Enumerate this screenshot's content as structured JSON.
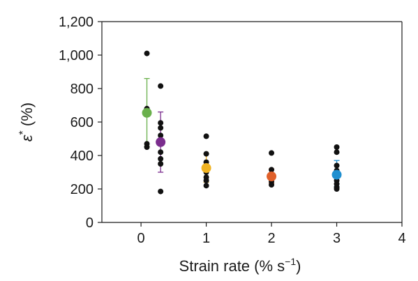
{
  "chart_data": {
    "type": "scatter",
    "xlabel": "Strain rate (% s",
    "xlabel_exponent": "−1",
    "xlabel_suffix": ")",
    "ylabel_symbol": "ε",
    "ylabel_star": "*",
    "ylabel_unit": " (%)",
    "xlim": [
      -0.6,
      4
    ],
    "ylim": [
      0,
      1200
    ],
    "x_ticks": [
      {
        "value": 0,
        "label": "0"
      },
      {
        "value": 1,
        "label": "1"
      },
      {
        "value": 2,
        "label": "2"
      },
      {
        "value": 3,
        "label": "3"
      },
      {
        "value": 4,
        "label": "4"
      }
    ],
    "y_ticks": [
      {
        "value": 0,
        "label": "0"
      },
      {
        "value": 200,
        "label": "200"
      },
      {
        "value": 400,
        "label": "400"
      },
      {
        "value": 600,
        "label": "600"
      },
      {
        "value": 800,
        "label": "800"
      },
      {
        "value": 1000,
        "label": "1,000"
      },
      {
        "value": 1200,
        "label": "1,200"
      }
    ],
    "grid": false,
    "individual_points": {
      "color": "#111111",
      "points": [
        [
          0.09,
          1010
        ],
        [
          0.09,
          680
        ],
        [
          0.09,
          470
        ],
        [
          0.09,
          450
        ],
        [
          0.3,
          815
        ],
        [
          0.3,
          595
        ],
        [
          0.3,
          565
        ],
        [
          0.3,
          520
        ],
        [
          0.3,
          420
        ],
        [
          0.3,
          380
        ],
        [
          0.3,
          350
        ],
        [
          0.3,
          185
        ],
        [
          1.0,
          515
        ],
        [
          1.0,
          410
        ],
        [
          1.0,
          360
        ],
        [
          1.0,
          330
        ],
        [
          1.0,
          300
        ],
        [
          1.0,
          270
        ],
        [
          1.0,
          250
        ],
        [
          1.0,
          220
        ],
        [
          2.0,
          415
        ],
        [
          2.0,
          315
        ],
        [
          2.0,
          290
        ],
        [
          2.0,
          265
        ],
        [
          2.0,
          245
        ],
        [
          2.0,
          225
        ],
        [
          3.0,
          450
        ],
        [
          3.0,
          420
        ],
        [
          3.0,
          340
        ],
        [
          3.0,
          310
        ],
        [
          3.0,
          290
        ],
        [
          3.0,
          270
        ],
        [
          3.0,
          250
        ],
        [
          3.0,
          230
        ],
        [
          3.0,
          210
        ],
        [
          3.0,
          200
        ]
      ]
    },
    "means": [
      {
        "x": 0.09,
        "y": 655,
        "err_low": 455,
        "err_high": 860,
        "color": "#6ab04c"
      },
      {
        "x": 0.3,
        "y": 480,
        "err_low": 300,
        "err_high": 660,
        "color": "#7b2d8e"
      },
      {
        "x": 1.0,
        "y": 325,
        "err_low": 240,
        "err_high": 410,
        "color": "#f0b323"
      },
      {
        "x": 2.0,
        "y": 275,
        "err_low": 235,
        "err_high": 320,
        "color": "#e0602a"
      },
      {
        "x": 3.0,
        "y": 285,
        "err_low": 215,
        "err_high": 370,
        "color": "#1f8fd0"
      }
    ]
  }
}
